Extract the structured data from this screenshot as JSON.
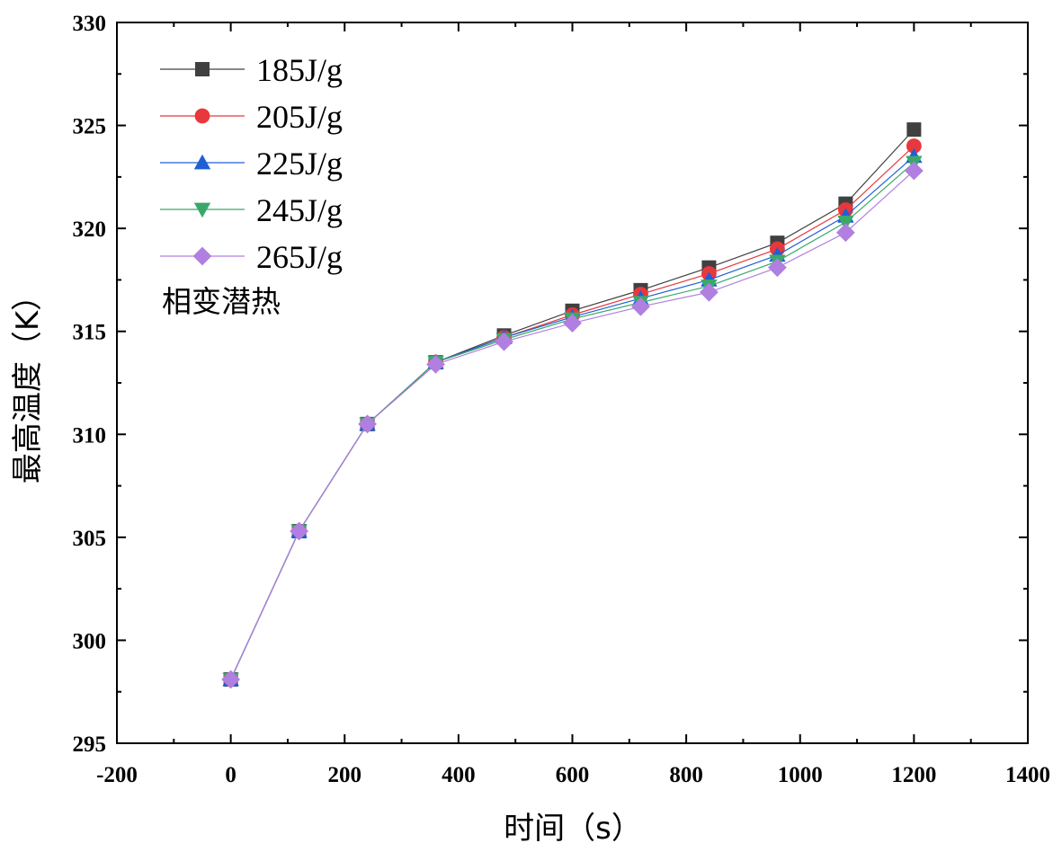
{
  "chart_data": {
    "type": "line",
    "title": "",
    "xlabel": "时间（s）",
    "ylabel": "最高温度（K）",
    "xlim": [
      -200,
      1400
    ],
    "ylim": [
      295,
      330
    ],
    "xticks": [
      -200,
      0,
      200,
      400,
      600,
      800,
      1000,
      1200,
      1400
    ],
    "yticks": [
      295,
      300,
      305,
      310,
      315,
      320,
      325,
      330
    ],
    "legend_title": "相变潜热",
    "legend_position": "top-left",
    "x": [
      0,
      120,
      240,
      360,
      480,
      600,
      720,
      840,
      960,
      1080,
      1200
    ],
    "series": [
      {
        "name": "185J/g",
        "color": "#404040",
        "marker": "square",
        "values": [
          298.1,
          305.3,
          310.5,
          313.5,
          314.8,
          316.0,
          317.0,
          318.1,
          319.3,
          321.2,
          324.8
        ]
      },
      {
        "name": "205J/g",
        "color": "#e8383d",
        "marker": "circle",
        "values": [
          298.1,
          305.3,
          310.5,
          313.5,
          314.7,
          315.8,
          316.8,
          317.8,
          319.0,
          320.9,
          324.0
        ]
      },
      {
        "name": "225J/g",
        "color": "#1f5fd6",
        "marker": "triangle-up",
        "values": [
          298.1,
          305.3,
          310.5,
          313.5,
          314.7,
          315.7,
          316.6,
          317.5,
          318.7,
          320.6,
          323.5
        ]
      },
      {
        "name": "245J/g",
        "color": "#3aa86b",
        "marker": "triangle-down",
        "values": [
          298.1,
          305.3,
          310.5,
          313.5,
          314.6,
          315.6,
          316.4,
          317.2,
          318.4,
          320.3,
          323.2
        ]
      },
      {
        "name": "265J/g",
        "color": "#b07fe0",
        "marker": "diamond",
        "values": [
          298.1,
          305.3,
          310.5,
          313.4,
          314.5,
          315.4,
          316.2,
          316.9,
          318.1,
          319.8,
          322.8
        ]
      }
    ]
  }
}
